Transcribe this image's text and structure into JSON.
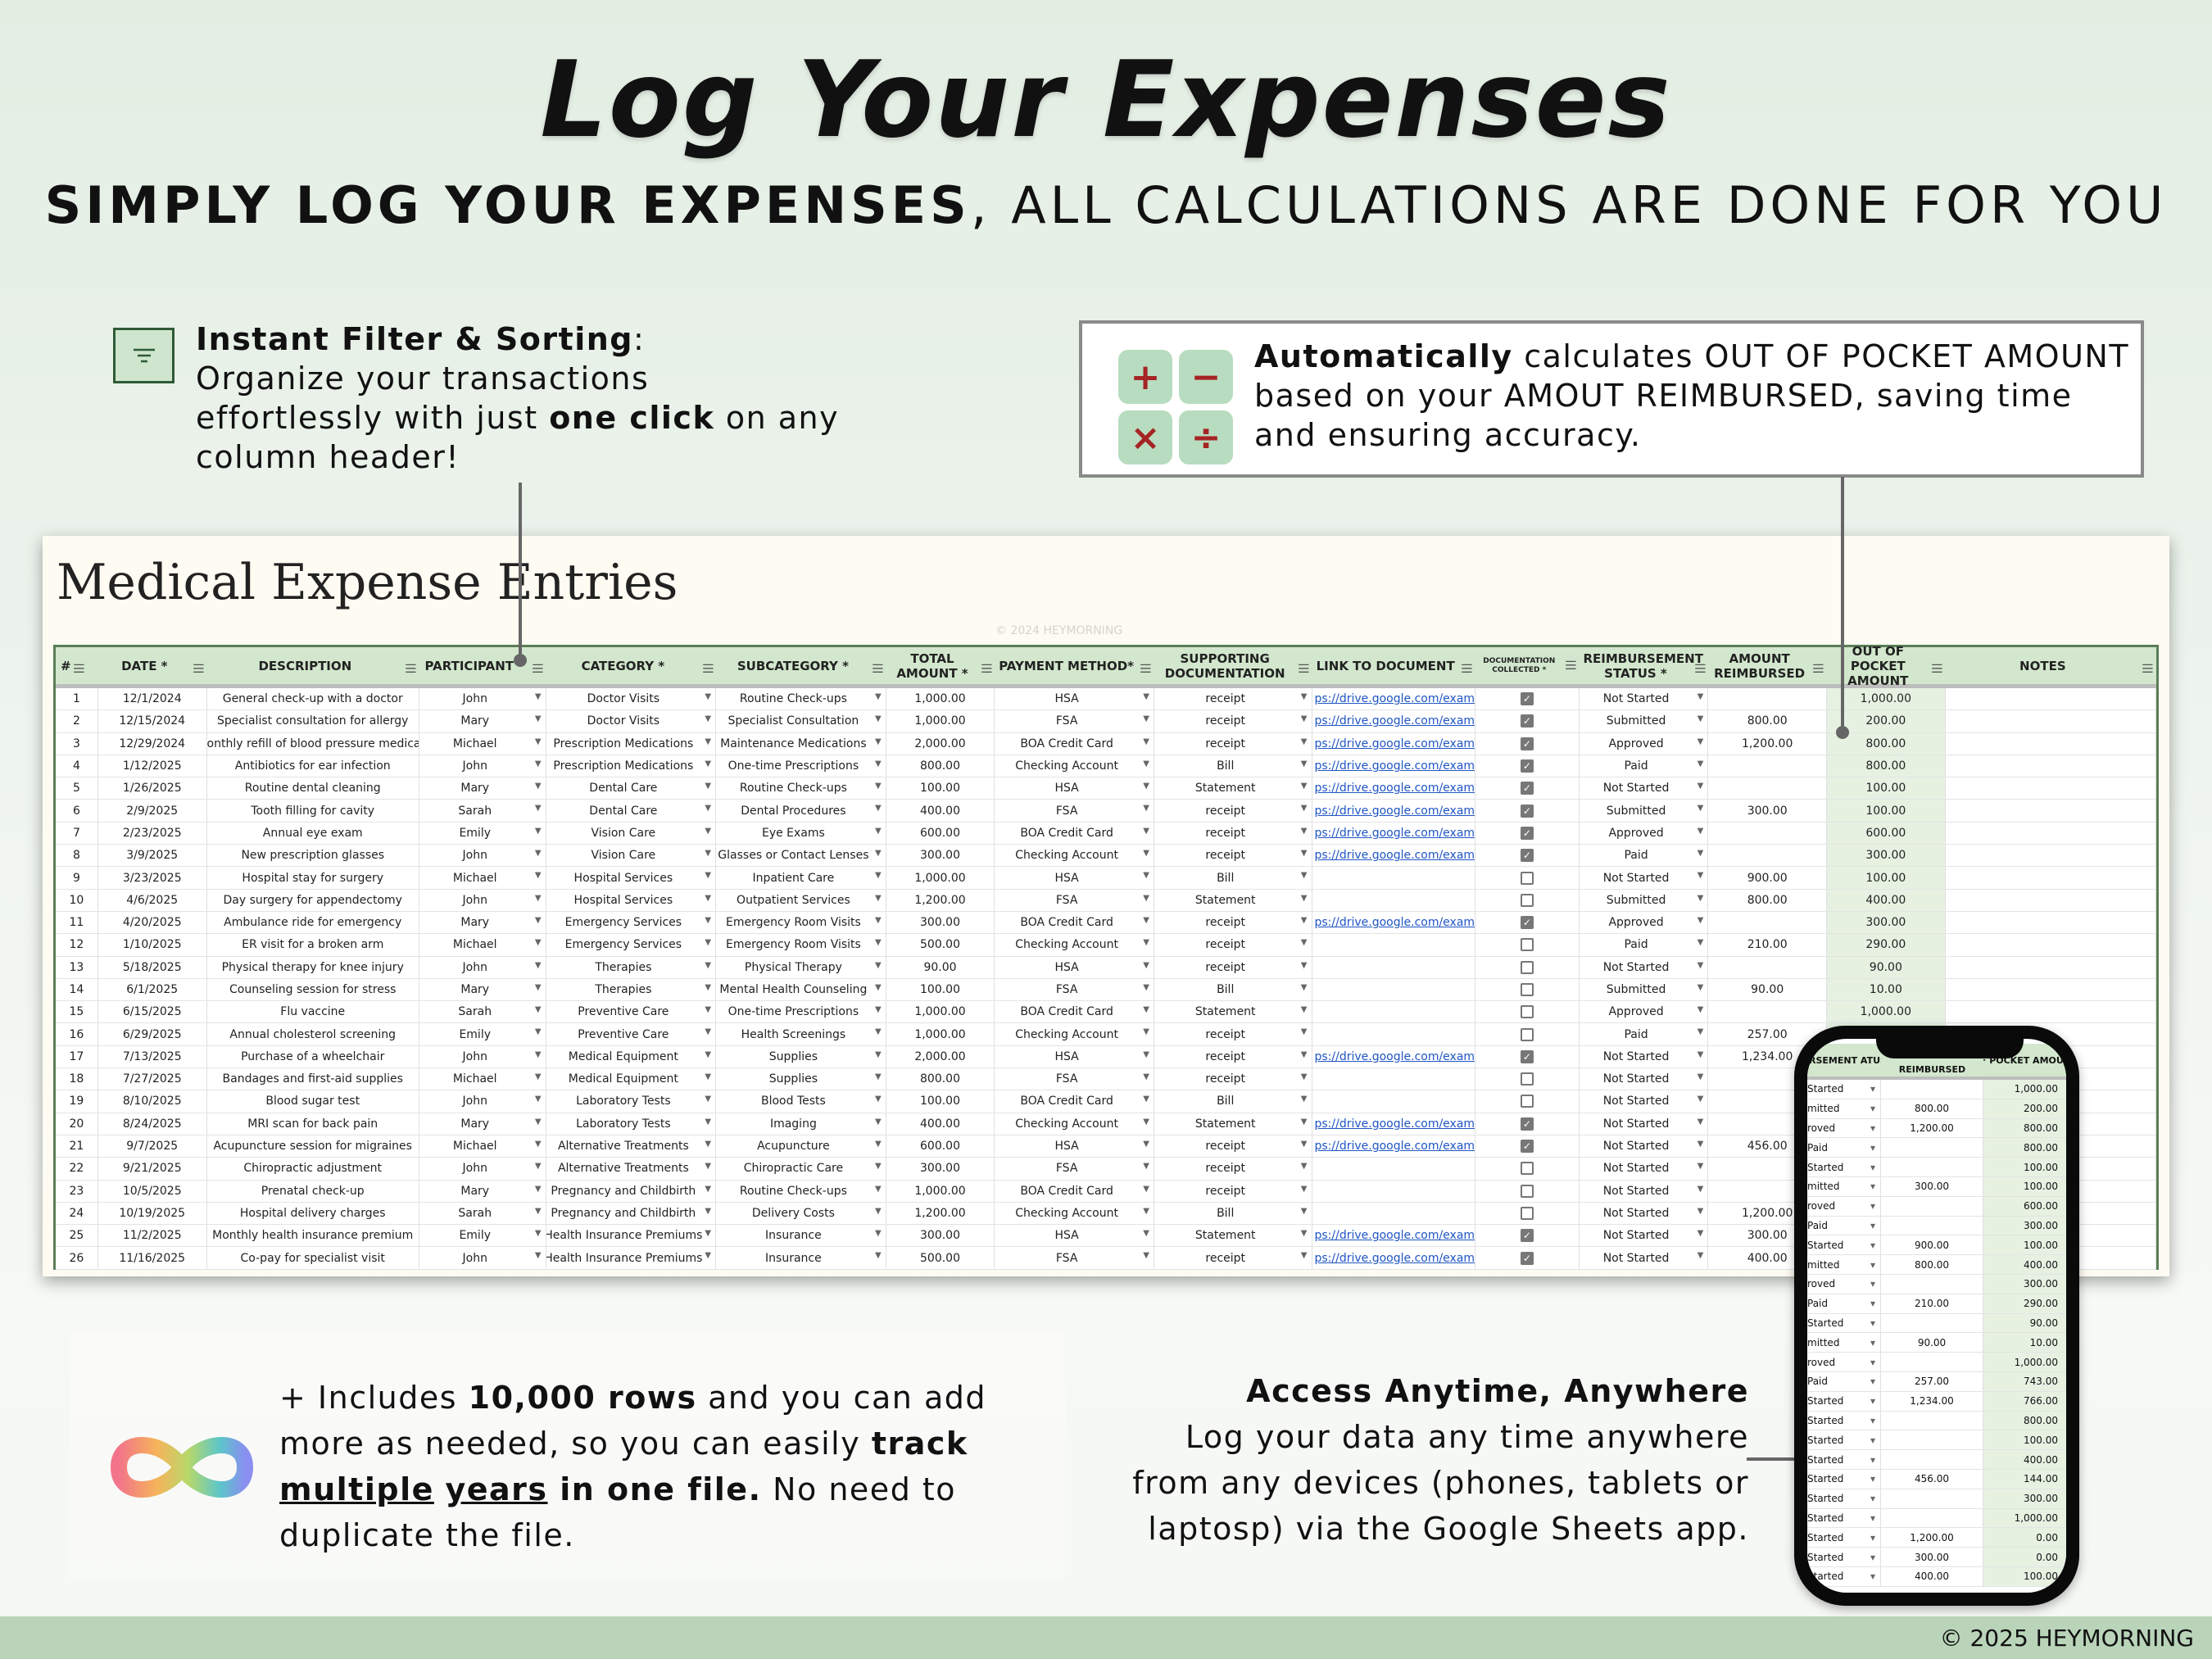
{
  "header": {
    "title": "Log Your Expenses",
    "subtitle_bold": "SIMPLY LOG YOUR EXPENSES",
    "subtitle_rest": ", ALL CALCULATIONS ARE DONE FOR YOU"
  },
  "filter_callout": {
    "icon": "filter-icon",
    "bold": "Instant Filter & Sorting",
    "colon": ":",
    "line1": "Organize your transactions",
    "line2a": "effortlessly with just ",
    "line2b": "one click",
    "line2c": " on any",
    "line3": "column header!"
  },
  "calc_callout": {
    "icons": [
      "plus",
      "minus",
      "times",
      "divide"
    ],
    "keys": [
      "+",
      "−",
      "×",
      "÷"
    ],
    "bold": "Automatically",
    "text": " calculates OUT OF POCKET AMOUNT based on your AMOUT REIMBURSED, saving time and ensuring accuracy."
  },
  "sheet": {
    "title": "Medical Expense Entries",
    "watermark": "© 2024 HEYMORNING",
    "columns": [
      "#",
      "DATE *",
      "DESCRIPTION",
      "PARTICIPANT *",
      "CATEGORY *",
      "SUBCATEGORY *",
      "TOTAL AMOUNT *",
      "PAYMENT METHOD*",
      "SUPPORTING DOCUMENTATION",
      "LINK TO DOCUMENT",
      "DOCUMENTATION COLLECTED *",
      "REIMBURSEMENT STATUS *",
      "AMOUNT REIMBURSED",
      "OUT OF POCKET AMOUNT",
      "NOTES"
    ],
    "rows": [
      [
        "1",
        "12/1/2024",
        "General check-up with a doctor",
        "John",
        "Doctor Visits",
        "Routine Check-ups",
        "1,000.00",
        "HSA",
        "receipt",
        "ps://drive.google.com/examp",
        true,
        "Not Started",
        "",
        "1,000.00",
        ""
      ],
      [
        "2",
        "12/15/2024",
        "Specialist consultation for allergy",
        "Mary",
        "Doctor Visits",
        "Specialist Consultation",
        "1,000.00",
        "FSA",
        "receipt",
        "ps://drive.google.com/examp",
        true,
        "Submitted",
        "800.00",
        "200.00",
        ""
      ],
      [
        "3",
        "12/29/2024",
        "onthly refill of blood pressure medicati",
        "Michael",
        "Prescription Medications",
        "Maintenance Medications",
        "2,000.00",
        "BOA Credit Card",
        "receipt",
        "ps://drive.google.com/examp",
        true,
        "Approved",
        "1,200.00",
        "800.00",
        ""
      ],
      [
        "4",
        "1/12/2025",
        "Antibiotics for ear infection",
        "John",
        "Prescription Medications",
        "One-time Prescriptions",
        "800.00",
        "Checking Account",
        "Bill",
        "ps://drive.google.com/examp",
        true,
        "Paid",
        "",
        "800.00",
        ""
      ],
      [
        "5",
        "1/26/2025",
        "Routine dental cleaning",
        "Mary",
        "Dental Care",
        "Routine Check-ups",
        "100.00",
        "HSA",
        "Statement",
        "ps://drive.google.com/examp",
        true,
        "Not Started",
        "",
        "100.00",
        ""
      ],
      [
        "6",
        "2/9/2025",
        "Tooth filling for cavity",
        "Sarah",
        "Dental Care",
        "Dental Procedures",
        "400.00",
        "FSA",
        "receipt",
        "ps://drive.google.com/examp",
        true,
        "Submitted",
        "300.00",
        "100.00",
        ""
      ],
      [
        "7",
        "2/23/2025",
        "Annual eye exam",
        "Emily",
        "Vision Care",
        "Eye Exams",
        "600.00",
        "BOA Credit Card",
        "receipt",
        "ps://drive.google.com/examp",
        true,
        "Approved",
        "",
        "600.00",
        ""
      ],
      [
        "8",
        "3/9/2025",
        "New prescription glasses",
        "John",
        "Vision Care",
        "Glasses or Contact Lenses",
        "300.00",
        "Checking Account",
        "receipt",
        "ps://drive.google.com/examp",
        true,
        "Paid",
        "",
        "300.00",
        ""
      ],
      [
        "9",
        "3/23/2025",
        "Hospital stay for surgery",
        "Michael",
        "Hospital Services",
        "Inpatient Care",
        "1,000.00",
        "HSA",
        "Bill",
        "",
        false,
        "Not Started",
        "900.00",
        "100.00",
        ""
      ],
      [
        "10",
        "4/6/2025",
        "Day surgery for appendectomy",
        "John",
        "Hospital Services",
        "Outpatient Services",
        "1,200.00",
        "FSA",
        "Statement",
        "",
        false,
        "Submitted",
        "800.00",
        "400.00",
        ""
      ],
      [
        "11",
        "4/20/2025",
        "Ambulance ride for emergency",
        "Mary",
        "Emergency Services",
        "Emergency Room Visits",
        "300.00",
        "BOA Credit Card",
        "receipt",
        "ps://drive.google.com/examp",
        true,
        "Approved",
        "",
        "300.00",
        ""
      ],
      [
        "12",
        "1/10/2025",
        "ER visit for a broken arm",
        "Michael",
        "Emergency Services",
        "Emergency Room Visits",
        "500.00",
        "Checking Account",
        "receipt",
        "",
        false,
        "Paid",
        "210.00",
        "290.00",
        ""
      ],
      [
        "13",
        "5/18/2025",
        "Physical therapy for knee injury",
        "John",
        "Therapies",
        "Physical Therapy",
        "90.00",
        "HSA",
        "receipt",
        "",
        false,
        "Not Started",
        "",
        "90.00",
        ""
      ],
      [
        "14",
        "6/1/2025",
        "Counseling session for stress",
        "Mary",
        "Therapies",
        "Mental Health Counseling",
        "100.00",
        "FSA",
        "Bill",
        "",
        false,
        "Submitted",
        "90.00",
        "10.00",
        ""
      ],
      [
        "15",
        "6/15/2025",
        "Flu vaccine",
        "Sarah",
        "Preventive Care",
        "One-time Prescriptions",
        "1,000.00",
        "BOA Credit Card",
        "Statement",
        "",
        false,
        "Approved",
        "",
        "1,000.00",
        ""
      ],
      [
        "16",
        "6/29/2025",
        "Annual cholesterol screening",
        "Emily",
        "Preventive Care",
        "Health Screenings",
        "1,000.00",
        "Checking Account",
        "receipt",
        "",
        false,
        "Paid",
        "257.00",
        "743.00",
        ""
      ],
      [
        "17",
        "7/13/2025",
        "Purchase of a wheelchair",
        "John",
        "Medical Equipment",
        "Supplies",
        "2,000.00",
        "HSA",
        "receipt",
        "ps://drive.google.com/examp",
        true,
        "Not Started",
        "1,234.00",
        "766.00",
        ""
      ],
      [
        "18",
        "7/27/2025",
        "Bandages and first-aid supplies",
        "Michael",
        "Medical Equipment",
        "Supplies",
        "800.00",
        "FSA",
        "receipt",
        "",
        false,
        "Not Started",
        "",
        "800.00",
        ""
      ],
      [
        "19",
        "8/10/2025",
        "Blood sugar test",
        "John",
        "Laboratory Tests",
        "Blood Tests",
        "100.00",
        "BOA Credit Card",
        "Bill",
        "",
        false,
        "Not Started",
        "",
        "100.00",
        ""
      ],
      [
        "20",
        "8/24/2025",
        "MRI scan for back pain",
        "Mary",
        "Laboratory Tests",
        "Imaging",
        "400.00",
        "Checking Account",
        "Statement",
        "ps://drive.google.com/examp",
        true,
        "Not Started",
        "",
        "400.00",
        ""
      ],
      [
        "21",
        "9/7/2025",
        "Acupuncture session for migraines",
        "Michael",
        "Alternative Treatments",
        "Acupuncture",
        "600.00",
        "HSA",
        "receipt",
        "ps://drive.google.com/examp",
        true,
        "Not Started",
        "456.00",
        "144.00",
        ""
      ],
      [
        "22",
        "9/21/2025",
        "Chiropractic adjustment",
        "John",
        "Alternative Treatments",
        "Chiropractic Care",
        "300.00",
        "FSA",
        "receipt",
        "",
        false,
        "Not Started",
        "",
        "300.00",
        ""
      ],
      [
        "23",
        "10/5/2025",
        "Prenatal check-up",
        "Mary",
        "Pregnancy and Childbirth",
        "Routine Check-ups",
        "1,000.00",
        "BOA Credit Card",
        "receipt",
        "",
        false,
        "Not Started",
        "",
        "1,000.00",
        ""
      ],
      [
        "24",
        "10/19/2025",
        "Hospital delivery charges",
        "Sarah",
        "Pregnancy and Childbirth",
        "Delivery Costs",
        "1,200.00",
        "Checking Account",
        "Bill",
        "",
        false,
        "Not Started",
        "1,200.00",
        "0.00",
        ""
      ],
      [
        "25",
        "11/2/2025",
        "Monthly health insurance premium",
        "Emily",
        "Health Insurance Premiums",
        "Insurance",
        "300.00",
        "HSA",
        "Statement",
        "ps://drive.google.com/examp",
        true,
        "Not Started",
        "300.00",
        "0.00",
        ""
      ],
      [
        "26",
        "11/16/2025",
        "Co-pay for specialist visit",
        "John",
        "Health Insurance Premiums",
        "Insurance",
        "500.00",
        "FSA",
        "receipt",
        "ps://drive.google.com/examp",
        true,
        "Not Started",
        "400.00",
        "100.00",
        ""
      ]
    ]
  },
  "phone": {
    "headers": [
      "RSEMENT ATUS *",
      "REIMBURSED",
      "OF POCKET AMOUNT"
    ],
    "status_fragments": [
      "Started",
      "mitted",
      "roved",
      "Paid",
      "Started",
      "mitted",
      "roved",
      "Paid",
      "Started",
      "mitted",
      "roved",
      "Paid",
      "Started",
      "mitted",
      "roved",
      "Paid",
      "Started",
      "Started",
      "Started",
      "Started",
      "Started",
      "Started",
      "Started",
      "Started",
      "Started",
      "Started"
    ]
  },
  "infinite": {
    "plus": "+ Includes ",
    "rows_bold": "10,000 rows",
    "t1": " and you can add more as needed, so you can easily ",
    "track": "track ",
    "multiple": "multiple",
    "years": "years",
    "in_one": " in one file.",
    "t2": " No need to duplicate the file."
  },
  "access": {
    "title": "Access Anytime, Anywhere",
    "text": "Log your data any time anywhere from any devices (phones, tablets or laptosp) via the Google Sheets app."
  },
  "footer": {
    "copyright": "© 2025 HEYMORNING"
  },
  "colors": {
    "header_green": "#d2e7cd",
    "border_green": "#5b7d57",
    "oop_fill": "#e6f1e2",
    "calc_key": "#b8dcbf",
    "calc_symbol": "#a52424",
    "footer": "#b9d4b9",
    "link": "#1f55c4"
  }
}
